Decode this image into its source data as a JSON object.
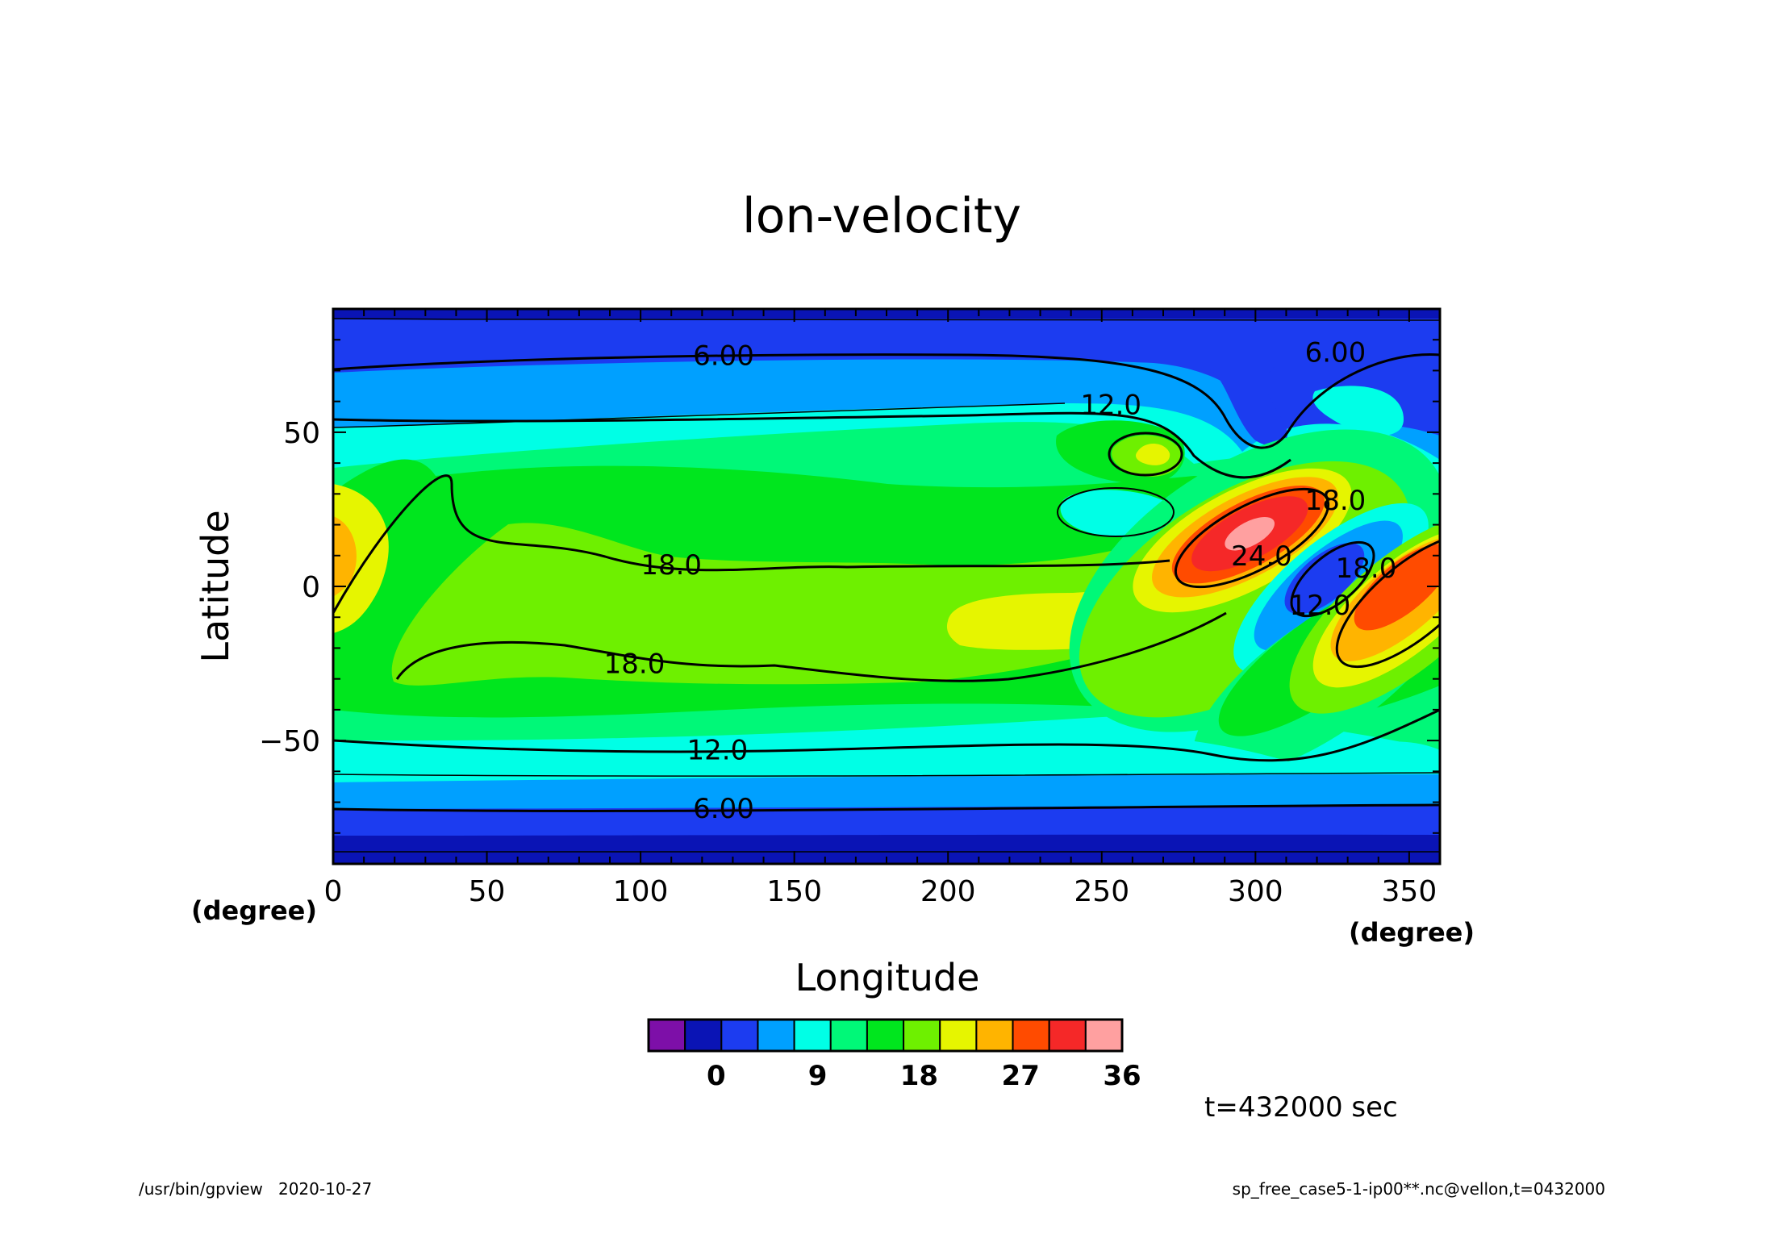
{
  "chart_data": {
    "type": "heatmap",
    "title": "lon-velocity",
    "xlabel": "Longitude",
    "ylabel": "Latitude",
    "xunit": "(degree)",
    "yunit": "(degree)",
    "xlim": [
      0,
      360
    ],
    "ylim": [
      -90,
      90
    ],
    "xticks": [
      0,
      50,
      100,
      150,
      200,
      250,
      300,
      350
    ],
    "yticks": [
      50,
      0,
      -50
    ],
    "ytick_labels": [
      "50",
      "0",
      "−50"
    ],
    "contour_labels": [
      {
        "text": "6.00",
        "x": 127,
        "y": 75
      },
      {
        "text": "12.0",
        "x": 253,
        "y": 59
      },
      {
        "text": "6.00",
        "x": 326,
        "y": 76
      },
      {
        "text": "18.0",
        "x": 110,
        "y": 7
      },
      {
        "text": "18.0",
        "x": 98,
        "y": -25
      },
      {
        "text": "12.0",
        "x": 125,
        "y": -53
      },
      {
        "text": "6.00",
        "x": 127,
        "y": -72
      },
      {
        "text": "24.0",
        "x": 302,
        "y": 10
      },
      {
        "text": "18.0",
        "x": 326,
        "y": 28
      },
      {
        "text": "18.0",
        "x": 336,
        "y": 6
      },
      {
        "text": "12.0",
        "x": 321,
        "y": -6
      }
    ],
    "colorbar": {
      "levels": [
        -6,
        -3,
        0,
        3,
        6,
        9,
        12,
        15,
        18,
        21,
        24,
        27,
        30,
        33,
        36
      ],
      "tick_values": [
        0,
        9,
        18,
        27,
        36
      ],
      "tick_labels": [
        "0",
        "9",
        "18",
        "27",
        "36"
      ],
      "colors": [
        "#7d0fa8",
        "#0a14b5",
        "#1c3cf0",
        "#00a0ff",
        "#00ffe6",
        "#00f878",
        "#00e61e",
        "#6ef000",
        "#e6f500",
        "#ffb400",
        "#ff4b00",
        "#f52828",
        "#ffa0a0"
      ]
    },
    "grid": false
  },
  "annotations": {
    "time": "t=432000 sec",
    "footer_left": "/usr/bin/gpview   2020-10-27",
    "footer_right": "sp_free_case5-1-ip00**.nc@vellon,t=0432000"
  }
}
